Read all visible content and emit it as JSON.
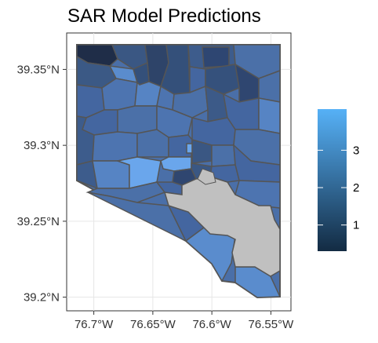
{
  "chart_data": {
    "type": "choropleth",
    "title": "SAR Model Predictions",
    "x_axis": {
      "ticks": [
        {
          "value": -76.7,
          "label": "76.7°W"
        },
        {
          "value": -76.65,
          "label": "76.65°W"
        },
        {
          "value": -76.6,
          "label": "76.6°W"
        },
        {
          "value": -76.55,
          "label": "76.55°W"
        }
      ],
      "lim": [
        -76.723,
        -76.533
      ]
    },
    "y_axis": {
      "ticks": [
        {
          "value": 39.2,
          "label": "39.2°N"
        },
        {
          "value": 39.25,
          "label": "39.25°N"
        },
        {
          "value": 39.3,
          "label": "39.3°N"
        },
        {
          "value": 39.35,
          "label": "39.35°N"
        }
      ],
      "lim": [
        39.191,
        39.374
      ]
    },
    "legend": {
      "placement": "right",
      "range": [
        0.3,
        4.1
      ],
      "ticks": [
        {
          "value": 1,
          "label": "1"
        },
        {
          "value": 2,
          "label": "2"
        },
        {
          "value": 3,
          "label": "3"
        }
      ],
      "color_low": "#132b43",
      "color_high": "#56b1f7"
    },
    "grid": true,
    "water_color": "#c0c0c0",
    "region_fill_dominant": "#4a6fa8"
  }
}
